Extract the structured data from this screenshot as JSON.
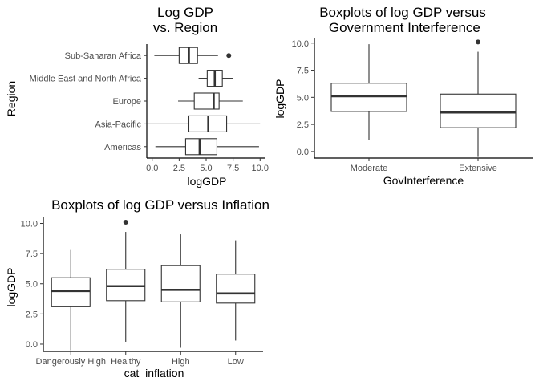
{
  "chart_data": [
    {
      "type": "boxplot",
      "orientation": "horizontal",
      "title_lines": [
        "Log GDP",
        "vs. Region"
      ],
      "xlabel": "logGDP",
      "ylabel": "Region",
      "xlim": [
        -0.5,
        10.5
      ],
      "xticks": [
        0,
        2.5,
        5,
        7.5,
        10
      ],
      "xtick_labels": [
        "0.0",
        "2.5",
        "5.0",
        "7.5",
        "10.0"
      ],
      "grid": false,
      "categories": [
        "Americas",
        "Asia-Pacific",
        "Europe",
        "Middle East and North Africa",
        "Sub-Saharan Africa"
      ],
      "boxes": [
        {
          "category": "Americas",
          "min": 0.3,
          "q1": 3.1,
          "median": 4.4,
          "q3": 6.0,
          "max": 9.9,
          "outliers": []
        },
        {
          "category": "Asia-Pacific",
          "min": -0.5,
          "q1": 3.4,
          "median": 5.2,
          "q3": 6.9,
          "max": 10.0,
          "outliers": []
        },
        {
          "category": "Europe",
          "min": 2.4,
          "q1": 3.9,
          "median": 5.7,
          "q3": 6.2,
          "max": 8.4,
          "outliers": []
        },
        {
          "category": "Middle East and North Africa",
          "min": 4.3,
          "q1": 5.1,
          "median": 5.8,
          "q3": 6.5,
          "max": 7.5,
          "outliers": []
        },
        {
          "category": "Sub-Saharan Africa",
          "min": 0.2,
          "q1": 2.5,
          "median": 3.4,
          "q3": 4.2,
          "max": 6.1,
          "outliers": [
            7.1
          ]
        }
      ]
    },
    {
      "type": "boxplot",
      "orientation": "vertical",
      "title_lines": [
        "Boxplots of log GDP versus",
        " Government Interference"
      ],
      "xlabel": "GovInterference",
      "ylabel": "logGDP",
      "ylim": [
        -0.6,
        10.5
      ],
      "yticks": [
        0,
        2.5,
        5,
        7.5,
        10
      ],
      "ytick_labels": [
        "0.0",
        "2.5",
        "5.0",
        "7.5",
        "10.0"
      ],
      "grid": false,
      "categories": [
        "Moderate",
        "Extensive"
      ],
      "boxes": [
        {
          "category": "Moderate",
          "min": 1.1,
          "q1": 3.7,
          "median": 5.1,
          "q3": 6.3,
          "max": 9.9,
          "outliers": []
        },
        {
          "category": "Extensive",
          "min": -0.5,
          "q1": 2.2,
          "median": 3.6,
          "q3": 5.3,
          "max": 9.2,
          "outliers": [
            10.1
          ]
        }
      ]
    },
    {
      "type": "boxplot",
      "orientation": "vertical",
      "title_lines": [
        "Boxplots of log GDP versus Inflation"
      ],
      "xlabel": "cat_inflation",
      "ylabel": "logGDP",
      "ylim": [
        -0.6,
        10.5
      ],
      "yticks": [
        0,
        2.5,
        5,
        7.5,
        10
      ],
      "ytick_labels": [
        "0.0",
        "2.5",
        "5.0",
        "7.5",
        "10.0"
      ],
      "grid": false,
      "categories": [
        "Dangerously High",
        "Healthy",
        "High",
        "Low"
      ],
      "boxes": [
        {
          "category": "Dangerously High",
          "min": -0.5,
          "q1": 3.1,
          "median": 4.4,
          "q3": 5.5,
          "max": 7.8,
          "outliers": []
        },
        {
          "category": "Healthy",
          "min": 0.2,
          "q1": 3.6,
          "median": 4.8,
          "q3": 6.2,
          "max": 9.3,
          "outliers": [
            10.1
          ]
        },
        {
          "category": "High",
          "min": -0.3,
          "q1": 3.5,
          "median": 4.5,
          "q3": 6.5,
          "max": 9.1,
          "outliers": []
        },
        {
          "category": "Low",
          "min": 0.3,
          "q1": 3.4,
          "median": 4.2,
          "q3": 5.8,
          "max": 8.6,
          "outliers": []
        }
      ]
    }
  ]
}
